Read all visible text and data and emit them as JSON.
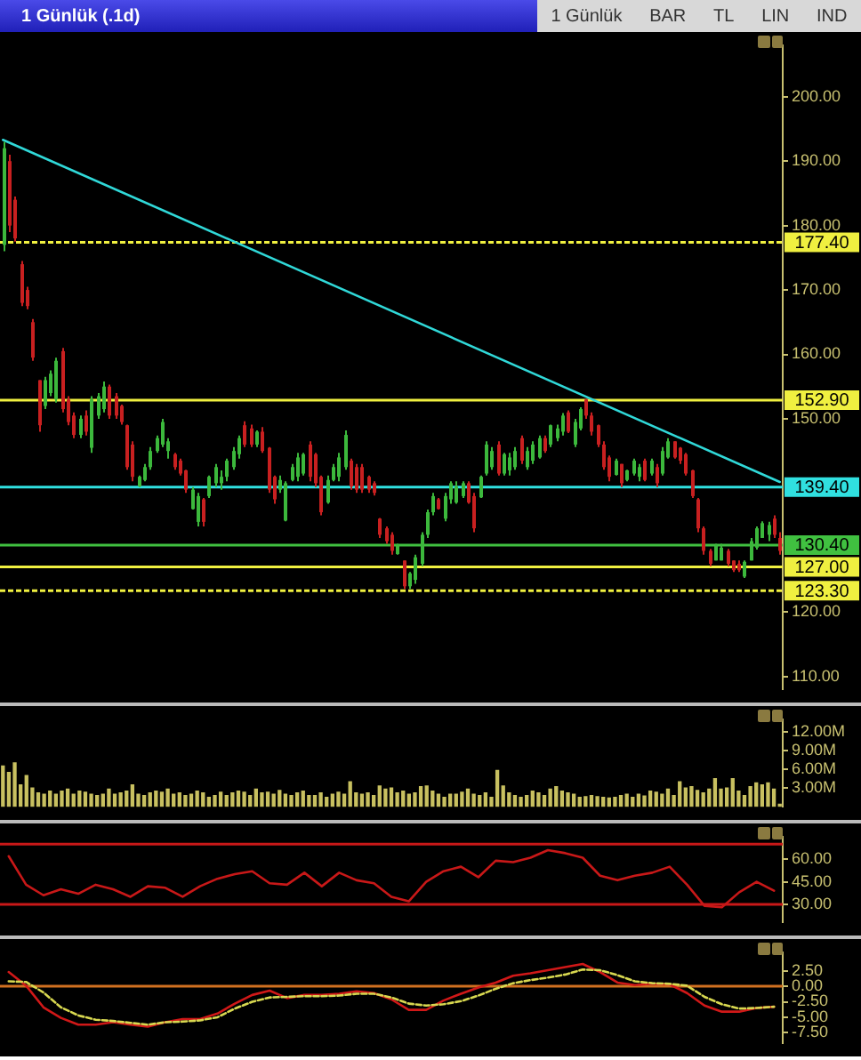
{
  "chart_data": [
    {
      "type": "candlestick",
      "title": "1 Günlük (.1d)",
      "annotations": [
        "1 Günlük",
        "BAR",
        "TL",
        "LIN",
        "IND"
      ],
      "categories": [
        null,
        null,
        null,
        null,
        null,
        null,
        null,
        null,
        null,
        null,
        null,
        null,
        null,
        null,
        null,
        null,
        null,
        null,
        null,
        null,
        null,
        null,
        null,
        null,
        null,
        null,
        null,
        null,
        null,
        null,
        null,
        null,
        null,
        null,
        null,
        null,
        null,
        null,
        null,
        null,
        null,
        null,
        null,
        null,
        null,
        null,
        null,
        null,
        null,
        null,
        null,
        null,
        null,
        null,
        null,
        null,
        null,
        null,
        null,
        null,
        null,
        null,
        null,
        null,
        null,
        null,
        null,
        null,
        null,
        null,
        null,
        null,
        null,
        null,
        null,
        null,
        null,
        null,
        null,
        null,
        null,
        null,
        null,
        null,
        null,
        null,
        null,
        null,
        null,
        null,
        null,
        null,
        null,
        null,
        null,
        null,
        null,
        null,
        null,
        null,
        null,
        null,
        null,
        null,
        null,
        null,
        null,
        null,
        null,
        null,
        null,
        null,
        null,
        null,
        null,
        null,
        null,
        null,
        null,
        null,
        null,
        null,
        null,
        null,
        null,
        null,
        null,
        null,
        null,
        null,
        null,
        null,
        null
      ],
      "ohlc": [
        [
          177,
          193,
          176,
          192
        ],
        [
          190,
          191,
          179,
          180
        ],
        [
          184,
          184.5,
          177.5,
          178
        ],
        [
          174,
          174.5,
          167.5,
          168
        ],
        [
          170,
          170.5,
          167,
          167.5
        ],
        [
          165,
          165.5,
          159,
          159.5
        ],
        [
          156,
          156,
          148,
          149
        ],
        [
          152,
          156.5,
          151.5,
          156
        ],
        [
          154,
          157.5,
          153.5,
          157
        ],
        [
          153,
          159.5,
          152.5,
          159
        ],
        [
          160.5,
          161,
          151,
          151.5
        ],
        [
          153,
          153.5,
          149,
          149.5
        ],
        [
          150.5,
          151,
          147,
          147.5
        ],
        [
          147.5,
          150.5,
          147,
          150
        ],
        [
          150.5,
          151.3,
          147.4,
          148
        ],
        [
          145.5,
          153.5,
          144.7,
          153
        ],
        [
          150.5,
          154,
          150,
          153.5
        ],
        [
          151.5,
          155.8,
          151,
          155
        ],
        [
          155,
          155.3,
          150,
          150.5
        ],
        [
          153.5,
          154,
          150,
          150.5
        ],
        [
          152,
          152.2,
          149.1,
          149.5
        ],
        [
          149,
          149.1,
          142.1,
          142.5
        ],
        [
          146,
          146.5,
          140.3,
          141
        ],
        [
          139.5,
          141.2,
          139.4,
          141
        ],
        [
          140.5,
          143,
          140.3,
          142.5
        ],
        [
          142.5,
          145.6,
          142.1,
          145
        ],
        [
          145,
          147.4,
          144.7,
          147
        ],
        [
          146,
          150,
          145.6,
          149.5
        ],
        [
          145,
          147,
          143.8,
          146.5
        ],
        [
          144.5,
          144.7,
          142.1,
          142.5
        ],
        [
          143.5,
          143.8,
          141.2,
          141.5
        ],
        [
          142,
          142.1,
          138.5,
          139
        ],
        [
          136,
          139.4,
          135.9,
          139
        ],
        [
          134,
          138.5,
          133.3,
          138
        ],
        [
          137.5,
          137.7,
          133.3,
          134
        ],
        [
          138,
          141.2,
          137.7,
          141
        ],
        [
          140,
          143,
          139.4,
          142.5
        ],
        [
          140,
          142,
          139,
          141
        ],
        [
          141,
          143.8,
          140.3,
          143.5
        ],
        [
          142.5,
          145.6,
          142.1,
          145
        ],
        [
          144.5,
          147.4,
          143.8,
          147
        ],
        [
          149,
          149.6,
          145.6,
          146
        ],
        [
          148.5,
          149.1,
          145.6,
          146
        ],
        [
          146,
          148.2,
          145.6,
          148
        ],
        [
          148,
          148.7,
          144.7,
          145
        ],
        [
          145.5,
          145.6,
          138.5,
          139
        ],
        [
          141,
          141.2,
          136.8,
          137.5
        ],
        [
          139,
          141.2,
          138.5,
          140.5
        ],
        [
          134.2,
          140.3,
          134.1,
          140
        ],
        [
          140.5,
          143,
          140.3,
          142.5
        ],
        [
          141,
          144.7,
          140.3,
          144
        ],
        [
          141.5,
          144.7,
          141.2,
          144.5
        ],
        [
          146,
          146.5,
          140.3,
          141
        ],
        [
          144.5,
          144.7,
          139.4,
          140
        ],
        [
          141,
          141.2,
          135,
          135.5
        ],
        [
          137,
          141.2,
          136.8,
          140.5
        ],
        [
          140.5,
          143,
          140.3,
          142.5
        ],
        [
          141,
          144.7,
          140.3,
          144
        ],
        [
          142.5,
          148.2,
          142.1,
          147.5
        ],
        [
          143.5,
          143.8,
          139,
          139.5
        ],
        [
          142.5,
          143,
          138.5,
          139
        ],
        [
          142.5,
          143,
          138.5,
          139
        ],
        [
          141,
          141.2,
          138.5,
          139
        ],
        [
          140,
          140.3,
          138.1,
          138.5
        ],
        [
          134.5,
          134.6,
          131.5,
          132
        ],
        [
          133,
          133.3,
          130.6,
          131
        ],
        [
          132,
          132.4,
          128.9,
          129.5
        ],
        [
          129,
          130.6,
          128.9,
          130.5
        ],
        [
          128,
          128,
          123.6,
          124
        ],
        [
          124,
          126.2,
          123.6,
          126
        ],
        [
          125,
          128.9,
          124.4,
          128.5
        ],
        [
          127.5,
          132.4,
          127.1,
          132
        ],
        [
          132,
          135.9,
          131.5,
          135.5
        ],
        [
          135.5,
          138.5,
          135,
          138
        ],
        [
          137.5,
          137.7,
          135.9,
          136
        ],
        [
          134.5,
          138.5,
          134.1,
          138
        ],
        [
          137.5,
          140.3,
          136.8,
          140
        ],
        [
          137,
          140.3,
          136.8,
          139.5
        ],
        [
          138,
          140.3,
          137.7,
          140
        ],
        [
          140,
          140.3,
          136.8,
          137
        ],
        [
          138,
          138.5,
          132.4,
          133
        ],
        [
          137.8,
          141.2,
          137.7,
          141
        ],
        [
          141.5,
          146.5,
          141.2,
          146
        ],
        [
          142.5,
          145.6,
          142.1,
          145
        ],
        [
          146,
          146.5,
          141.2,
          141.5
        ],
        [
          141.5,
          144.7,
          141.2,
          144.5
        ],
        [
          142,
          144.7,
          141.2,
          144
        ],
        [
          142.5,
          145.6,
          142.1,
          145
        ],
        [
          147,
          147.4,
          143,
          143.5
        ],
        [
          142.5,
          145.6,
          142.1,
          145
        ],
        [
          143.5,
          146.5,
          143,
          146
        ],
        [
          144,
          147.4,
          143.8,
          147
        ],
        [
          147,
          147.4,
          144.7,
          145
        ],
        [
          146,
          149.1,
          145.6,
          149
        ],
        [
          147,
          149.1,
          146.5,
          148.5
        ],
        [
          148,
          150.9,
          147.4,
          150.5
        ],
        [
          151,
          151.3,
          147.8,
          148
        ],
        [
          146,
          150,
          145.6,
          149.5
        ],
        [
          148.5,
          151.8,
          148.2,
          151.5
        ],
        [
          153,
          153.1,
          150,
          150.5
        ],
        [
          150.5,
          151,
          147.4,
          148
        ],
        [
          149,
          149.1,
          145.6,
          146
        ],
        [
          146,
          146.5,
          142.1,
          142.5
        ],
        [
          144,
          144.3,
          140.3,
          141
        ],
        [
          141.3,
          143.8,
          141.2,
          143.5
        ],
        [
          143,
          143,
          139.4,
          140
        ],
        [
          140.5,
          142.1,
          140.3,
          142
        ],
        [
          141.5,
          143.8,
          141.2,
          143.5
        ],
        [
          141,
          143,
          140.3,
          142.5
        ],
        [
          143.5,
          143.8,
          140.3,
          140.5
        ],
        [
          141.5,
          143.8,
          141.2,
          143.5
        ],
        [
          142.5,
          143,
          139.4,
          140
        ],
        [
          141.5,
          145.6,
          141.2,
          145
        ],
        [
          144,
          147,
          143.8,
          146.5
        ],
        [
          146.5,
          146.5,
          143.8,
          144
        ],
        [
          145.5,
          145.6,
          143,
          143.5
        ],
        [
          144.5,
          144.7,
          141.2,
          141.5
        ],
        [
          142,
          142.1,
          137.7,
          138
        ],
        [
          137.5,
          137.7,
          132.4,
          133
        ],
        [
          133,
          133.3,
          128.9,
          129.5
        ],
        [
          129.5,
          129.8,
          127.1,
          127.5
        ],
        [
          128,
          130.6,
          128,
          130.3
        ],
        [
          128,
          130.6,
          128,
          130
        ],
        [
          129.5,
          129.8,
          127.1,
          127.5
        ],
        [
          128,
          128,
          126.2,
          126.5
        ],
        [
          127.5,
          128,
          126.2,
          126.5
        ],
        [
          125.5,
          128,
          125.3,
          127.8
        ],
        [
          128,
          131.5,
          128,
          131
        ],
        [
          130,
          133.3,
          129.7,
          133
        ],
        [
          131.5,
          134.1,
          131.5,
          133.8
        ],
        [
          132,
          134,
          131,
          133.5
        ],
        [
          134.5,
          135,
          131.5,
          132
        ],
        [
          131.5,
          132.4,
          128.9,
          129.5
        ]
      ],
      "series": [
        {
          "type": "line",
          "values": [
            193.3,
            null,
            null,
            null,
            null,
            null,
            null,
            null,
            null,
            null,
            null,
            null,
            null,
            null,
            null,
            null,
            null,
            null,
            null,
            null,
            null,
            null,
            null,
            null,
            null,
            null,
            null,
            null,
            null,
            null,
            null,
            null,
            null,
            null,
            null,
            null,
            null,
            null,
            null,
            null,
            null,
            null,
            null,
            null,
            null,
            null,
            null,
            null,
            null,
            null,
            null,
            null,
            null,
            null,
            null,
            null,
            null,
            null,
            null,
            null,
            null,
            null,
            null,
            null,
            null,
            null,
            null,
            null,
            null,
            null,
            null,
            null,
            null,
            null,
            null,
            null,
            null,
            null,
            null,
            null,
            null,
            null,
            null,
            null,
            null,
            null,
            null,
            null,
            null,
            null,
            null,
            null,
            null,
            null,
            null,
            null,
            null,
            null,
            null,
            null,
            null,
            null,
            null,
            null,
            null,
            null,
            null,
            null,
            null,
            null,
            null,
            null,
            null,
            null,
            null,
            null,
            null,
            null,
            null,
            null,
            null,
            null,
            null,
            null,
            null,
            null,
            null,
            null,
            null,
            null,
            null,
            null,
            140.2
          ],
          "color": "#30d8d8"
        }
      ],
      "ylim": [
        108,
        208
      ],
      "yticks": [
        {
          "value": 110,
          "label": "110.00"
        },
        {
          "value": 120,
          "label": "120.00"
        },
        {
          "value": 150,
          "label": "150.00"
        },
        {
          "value": 160,
          "label": "160.00"
        },
        {
          "value": 170,
          "label": "170.00"
        },
        {
          "value": 180,
          "label": "180.00"
        },
        {
          "value": 190,
          "label": "190.00"
        },
        {
          "value": 200,
          "label": "200.00"
        }
      ],
      "tick_labels": "y",
      "ref_lines": [
        {
          "axis": "y",
          "value": 177.4,
          "label": "177.40",
          "color": "#f0f040",
          "line_style": "dashed"
        },
        {
          "axis": "y",
          "value": 152.9,
          "label": "152.90",
          "color": "#f0f040"
        },
        {
          "axis": "y",
          "value": 139.4,
          "label": "139.40",
          "color": "#30e0e0"
        },
        {
          "axis": "y",
          "value": 130.4,
          "label": "130.40",
          "color": "#40c040"
        },
        {
          "axis": "y",
          "value": 127,
          "label": "127.00",
          "color": "#f0f040"
        },
        {
          "axis": "y",
          "value": 123.3,
          "label": "123.30",
          "color": "#f0f040",
          "line_style": "dashed"
        }
      ]
    },
    {
      "type": "bar",
      "categories": [
        null,
        null,
        null,
        null,
        null,
        null,
        null,
        null,
        null,
        null,
        null,
        null,
        null,
        null,
        null,
        null,
        null,
        null,
        null,
        null,
        null,
        null,
        null,
        null,
        null,
        null,
        null,
        null,
        null,
        null,
        null,
        null,
        null,
        null,
        null,
        null,
        null,
        null,
        null,
        null,
        null,
        null,
        null,
        null,
        null,
        null,
        null,
        null,
        null,
        null,
        null,
        null,
        null,
        null,
        null,
        null,
        null,
        null,
        null,
        null,
        null,
        null,
        null,
        null,
        null,
        null,
        null,
        null,
        null,
        null,
        null,
        null,
        null,
        null,
        null,
        null,
        null,
        null,
        null,
        null,
        null,
        null,
        null,
        null,
        null,
        null,
        null,
        null,
        null,
        null,
        null,
        null,
        null,
        null,
        null,
        null,
        null,
        null,
        null,
        null,
        null,
        null,
        null,
        null,
        null,
        null,
        null,
        null,
        null,
        null,
        null,
        null,
        null,
        null,
        null,
        null,
        null,
        null,
        null,
        null,
        null,
        null,
        null,
        null,
        null,
        null,
        null,
        null,
        null,
        null,
        null,
        null,
        null
      ],
      "values": [
        6.5,
        5.5,
        7,
        3.5,
        5,
        3,
        2.2,
        2,
        2.5,
        2,
        2.5,
        2.8,
        2,
        2.5,
        2.3,
        2,
        1.8,
        2,
        2.8,
        2,
        2.2,
        2.5,
        3.5,
        2,
        1.8,
        2.2,
        2.5,
        2.3,
        2.8,
        2,
        2.2,
        1.8,
        2,
        2.5,
        2.2,
        1.5,
        1.8,
        2.3,
        1.8,
        2.2,
        2.5,
        2.3,
        1.8,
        2.8,
        2.2,
        2.3,
        2,
        2.6,
        2,
        1.8,
        2.2,
        2.5,
        1.8,
        1.8,
        2.2,
        1.5,
        2,
        2.3,
        2,
        4,
        2.2,
        2,
        2.2,
        1.8,
        3.3,
        2.8,
        3,
        2.2,
        2.5,
        2,
        2.2,
        3.2,
        3.3,
        2.5,
        2,
        1.5,
        2,
        2,
        2.3,
        2.8,
        2,
        1.8,
        2.2,
        1.5,
        5.8,
        3.3,
        2.2,
        1.8,
        1.5,
        1.8,
        2.5,
        2.2,
        1.8,
        2.8,
        3.2,
        2.5,
        2.2,
        2,
        1.5,
        1.6,
        1.8,
        1.6,
        1.5,
        1.4,
        1.5,
        1.8,
        2,
        1.5,
        2,
        1.7,
        2.5,
        2.3,
        2,
        2.8,
        1.8,
        4,
        3,
        3.2,
        2.6,
        2.2,
        2.8,
        4.5,
        2.8,
        3,
        4.5,
        2.5,
        1.8,
        3.2,
        3.8,
        3.5,
        3.8,
        2.8,
        0.4
      ],
      "color": "#c8c060",
      "ylim": [
        0,
        14
      ],
      "yticks": [
        {
          "value": 3,
          "label": "3.00M"
        },
        {
          "value": 6,
          "label": "6.00M"
        },
        {
          "value": 9,
          "label": "9.00M"
        },
        {
          "value": 12,
          "label": "12.00M"
        }
      ],
      "tick_labels": "y"
    },
    {
      "type": "line",
      "categories": [
        null,
        null,
        null,
        null,
        null,
        null,
        null,
        null,
        null,
        null,
        null,
        null,
        null,
        null,
        null,
        null,
        null,
        null,
        null,
        null,
        null,
        null,
        null,
        null,
        null,
        null,
        null,
        null,
        null,
        null,
        null,
        null,
        null,
        null,
        null,
        null,
        null,
        null,
        null,
        null,
        null,
        null,
        null,
        null,
        null
      ],
      "series": [
        {
          "values": [
            62,
            43,
            36,
            40,
            37,
            43,
            40,
            35,
            42,
            41,
            35,
            42,
            47,
            50,
            52,
            44,
            43,
            51,
            42,
            51,
            46,
            44,
            35,
            32,
            45,
            52,
            55,
            48,
            59,
            58,
            61,
            66,
            64,
            61,
            49,
            46,
            49,
            51,
            55,
            43,
            29,
            28,
            38,
            45,
            39
          ],
          "color": "#c81818"
        }
      ],
      "ylim": [
        18,
        75
      ],
      "yticks": [
        {
          "value": 30,
          "label": "30.00"
        },
        {
          "value": 45,
          "label": "45.00"
        },
        {
          "value": 60,
          "label": "60.00"
        }
      ],
      "tick_labels": "y",
      "ref_lines": [
        {
          "axis": "y",
          "value": 70,
          "color": "#c81818"
        },
        {
          "axis": "y",
          "value": 30,
          "color": "#c81818"
        }
      ]
    },
    {
      "type": "line",
      "categories": [
        null,
        null,
        null,
        null,
        null,
        null,
        null,
        null,
        null,
        null,
        null,
        null,
        null,
        null,
        null,
        null,
        null,
        null,
        null,
        null,
        null,
        null,
        null,
        null,
        null,
        null,
        null,
        null,
        null,
        null,
        null,
        null,
        null,
        null,
        null,
        null,
        null,
        null,
        null,
        null,
        null,
        null,
        null,
        null,
        null
      ],
      "series": [
        {
          "values": [
            2.3,
            0.1,
            -3.4,
            -5.1,
            -6.2,
            -6.2,
            -5.8,
            -6.2,
            -6.5,
            -5.8,
            -5.3,
            -5.3,
            -4.4,
            -2.8,
            -1.4,
            -0.7,
            -1.9,
            -1.4,
            -1.4,
            -1.2,
            -0.8,
            -1.1,
            -2.1,
            -3.8,
            -3.8,
            -2.3,
            -1.2,
            -0.2,
            0.6,
            1.7,
            2.1,
            2.6,
            3.1,
            3.6,
            2.3,
            0.6,
            0.2,
            0.4,
            0.3,
            -1.1,
            -3.1,
            -4.1,
            -4.1,
            -3.5,
            -3.3
          ],
          "color": "#d01818"
        },
        {
          "values": [
            0.8,
            0.7,
            -1,
            -3.4,
            -4.7,
            -5.4,
            -5.6,
            -5.9,
            -6.2,
            -5.8,
            -5.7,
            -5.5,
            -5,
            -3.6,
            -2.5,
            -1.8,
            -1.7,
            -1.6,
            -1.6,
            -1.5,
            -1.2,
            -1.2,
            -1.8,
            -2.8,
            -3.1,
            -2.9,
            -2.4,
            -1.5,
            -0.4,
            0.5,
            1,
            1.4,
            1.9,
            2.7,
            2.6,
            1.8,
            0.8,
            0.5,
            0.4,
            0.1,
            -1.7,
            -2.9,
            -3.6,
            -3.5,
            -3.3
          ],
          "color": "#d8d850",
          "line_style": "dashed"
        }
      ],
      "ylim": [
        -9.2,
        5.5
      ],
      "yticks": [
        {
          "value": -7.5,
          "label": "-7.50"
        },
        {
          "value": -5,
          "label": "-5.00"
        },
        {
          "value": -2.5,
          "label": "-2.50"
        },
        {
          "value": 0,
          "label": "0.00"
        },
        {
          "value": 2.5,
          "label": "2.50"
        }
      ],
      "tick_labels": "y",
      "ref_lines": [
        {
          "axis": "y",
          "value": 0,
          "color": "#d07020"
        }
      ]
    }
  ]
}
